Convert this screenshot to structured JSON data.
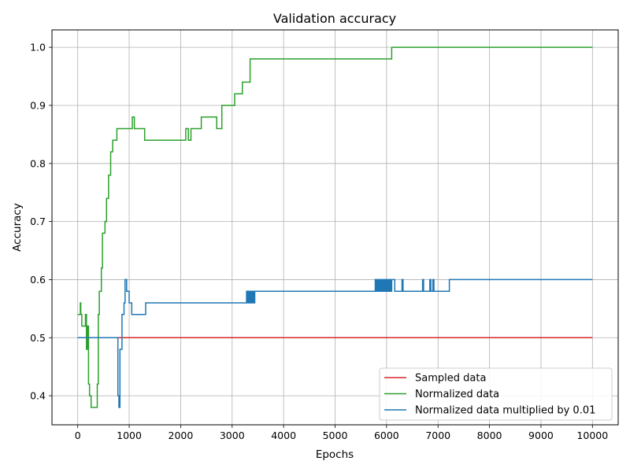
{
  "chart_data": {
    "type": "line",
    "title": "Validation accuracy",
    "xlabel": "Epochs",
    "ylabel": "Accuracy",
    "xlim": [
      -500,
      10500
    ],
    "ylim": [
      0.35,
      1.03
    ],
    "xticks": [
      0,
      1000,
      2000,
      3000,
      4000,
      5000,
      6000,
      7000,
      8000,
      9000,
      10000
    ],
    "xtick_labels": [
      "0",
      "1000",
      "2000",
      "3000",
      "4000",
      "5000",
      "6000",
      "7000",
      "8000",
      "9000",
      "10000"
    ],
    "yticks": [
      0.4,
      0.5,
      0.6,
      0.7,
      0.8,
      0.9,
      1.0
    ],
    "ytick_labels": [
      "0.4",
      "0.5",
      "0.6",
      "0.7",
      "0.8",
      "0.9",
      "1.0"
    ],
    "grid": true,
    "legend_position": "lower-right",
    "series": [
      {
        "name": "Sampled data",
        "color": "#d62728",
        "x": [
          0,
          10000
        ],
        "y": [
          0.5,
          0.5
        ]
      },
      {
        "name": "Normalized data",
        "color": "#2ca02c",
        "x": [
          0,
          30,
          50,
          60,
          80,
          150,
          170,
          190,
          210,
          230,
          260,
          300,
          380,
          400,
          420,
          440,
          460,
          480,
          500,
          530,
          560,
          600,
          640,
          680,
          720,
          760,
          800,
          1000,
          1060,
          1080,
          1100,
          1300,
          1500,
          2000,
          2100,
          2150,
          2200,
          2300,
          2400,
          2600,
          2700,
          2800,
          3000,
          3050,
          3100,
          3200,
          3300,
          3350,
          3400,
          5000,
          6000,
          6080,
          6100,
          7000,
          8000,
          9000,
          10000
        ],
        "y": [
          0.54,
          0.54,
          0.56,
          0.54,
          0.52,
          0.54,
          0.48,
          0.52,
          0.42,
          0.4,
          0.38,
          0.38,
          0.42,
          0.54,
          0.58,
          0.58,
          0.62,
          0.68,
          0.68,
          0.7,
          0.74,
          0.78,
          0.82,
          0.84,
          0.84,
          0.86,
          0.86,
          0.86,
          0.88,
          0.88,
          0.86,
          0.84,
          0.84,
          0.84,
          0.86,
          0.84,
          0.86,
          0.86,
          0.88,
          0.88,
          0.86,
          0.9,
          0.9,
          0.92,
          0.92,
          0.94,
          0.94,
          0.98,
          0.98,
          0.98,
          0.98,
          0.98,
          1.0,
          1.0,
          1.0,
          1.0,
          1.0
        ]
      },
      {
        "name": "Normalized data multiplied by 0.01",
        "color": "#1f77b4",
        "x": [
          0,
          400,
          700,
          760,
          780,
          800,
          820,
          860,
          900,
          920,
          950,
          1000,
          1050,
          1100,
          1300,
          1320,
          2000,
          3000,
          3260,
          3280,
          3300,
          3320,
          3340,
          3360,
          3380,
          3400,
          3420,
          3440,
          3460,
          4000,
          5000,
          5760,
          5780,
          5800,
          5820,
          5840,
          5860,
          5880,
          5900,
          5920,
          5940,
          5960,
          5980,
          6000,
          6020,
          6040,
          6060,
          6080,
          6100,
          6150,
          6160,
          6300,
          6320,
          6700,
          6720,
          6840,
          6860,
          6900,
          6920,
          7200,
          7220,
          8000,
          9000,
          10000
        ],
        "y": [
          0.5,
          0.5,
          0.5,
          0.5,
          0.4,
          0.38,
          0.48,
          0.54,
          0.56,
          0.6,
          0.58,
          0.56,
          0.54,
          0.54,
          0.54,
          0.56,
          0.56,
          0.56,
          0.56,
          0.58,
          0.56,
          0.58,
          0.56,
          0.58,
          0.56,
          0.58,
          0.56,
          0.58,
          0.58,
          0.58,
          0.58,
          0.58,
          0.6,
          0.58,
          0.6,
          0.58,
          0.6,
          0.58,
          0.6,
          0.58,
          0.6,
          0.58,
          0.6,
          0.58,
          0.6,
          0.58,
          0.6,
          0.58,
          0.6,
          0.6,
          0.58,
          0.6,
          0.58,
          0.6,
          0.58,
          0.6,
          0.58,
          0.6,
          0.58,
          0.58,
          0.6,
          0.6,
          0.6,
          0.6
        ]
      }
    ]
  }
}
